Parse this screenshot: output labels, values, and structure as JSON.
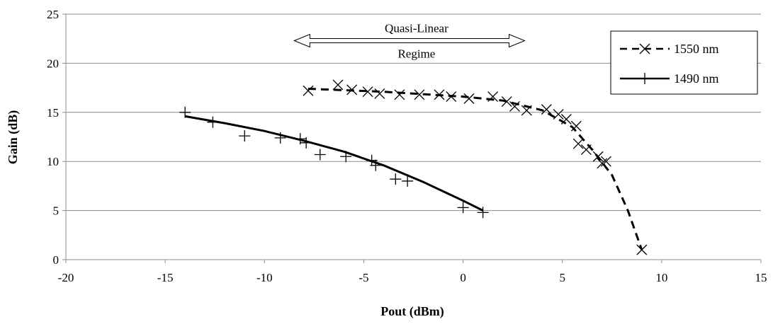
{
  "chart_data": {
    "type": "scatter",
    "title": "",
    "xlabel": "Pout (dBm)",
    "ylabel": "Gain (dB)",
    "xlim": [
      -20,
      15
    ],
    "ylim": [
      0,
      25
    ],
    "x_ticks": [
      -20,
      -15,
      -10,
      -5,
      0,
      5,
      10,
      15
    ],
    "y_ticks": [
      0,
      5,
      10,
      15,
      20,
      25
    ],
    "grid": "horizontal",
    "legend_position": "top-right",
    "series": [
      {
        "name": "1550 nm",
        "marker": "x",
        "line": "dashed",
        "color": "#000000",
        "points": [
          {
            "x": -7.8,
            "y": 17.2
          },
          {
            "x": -6.3,
            "y": 17.8
          },
          {
            "x": -5.6,
            "y": 17.3
          },
          {
            "x": -4.8,
            "y": 17.1
          },
          {
            "x": -4.2,
            "y": 16.9
          },
          {
            "x": -3.2,
            "y": 16.8
          },
          {
            "x": -2.2,
            "y": 16.8
          },
          {
            "x": -1.2,
            "y": 16.8
          },
          {
            "x": -0.6,
            "y": 16.6
          },
          {
            "x": 0.3,
            "y": 16.4
          },
          {
            "x": 1.5,
            "y": 16.6
          },
          {
            "x": 2.2,
            "y": 16.1
          },
          {
            "x": 2.6,
            "y": 15.6
          },
          {
            "x": 3.2,
            "y": 15.2
          },
          {
            "x": 4.2,
            "y": 15.3
          },
          {
            "x": 4.8,
            "y": 14.8
          },
          {
            "x": 5.2,
            "y": 14.3
          },
          {
            "x": 5.7,
            "y": 13.6
          },
          {
            "x": 5.8,
            "y": 11.8
          },
          {
            "x": 6.2,
            "y": 11.2
          },
          {
            "x": 6.8,
            "y": 10.5
          },
          {
            "x": 7.0,
            "y": 9.8
          },
          {
            "x": 7.2,
            "y": 10.0
          },
          {
            "x": 9.0,
            "y": 1.0
          }
        ],
        "fit": [
          {
            "x": -7.8,
            "y": 17.4
          },
          {
            "x": -4.0,
            "y": 17.1
          },
          {
            "x": 0.0,
            "y": 16.6
          },
          {
            "x": 2.0,
            "y": 16.2
          },
          {
            "x": 4.0,
            "y": 15.2
          },
          {
            "x": 5.5,
            "y": 13.5
          },
          {
            "x": 6.5,
            "y": 11.2
          },
          {
            "x": 7.5,
            "y": 8.6
          },
          {
            "x": 8.3,
            "y": 5.0
          },
          {
            "x": 9.0,
            "y": 1.0
          }
        ]
      },
      {
        "name": "1490 nm",
        "marker": "+",
        "line": "solid",
        "color": "#000000",
        "points": [
          {
            "x": -14.0,
            "y": 15.0
          },
          {
            "x": -12.6,
            "y": 14.0
          },
          {
            "x": -11.0,
            "y": 12.6
          },
          {
            "x": -9.2,
            "y": 12.4
          },
          {
            "x": -8.2,
            "y": 12.3
          },
          {
            "x": -7.9,
            "y": 11.9
          },
          {
            "x": -7.2,
            "y": 10.7
          },
          {
            "x": -5.9,
            "y": 10.5
          },
          {
            "x": -4.6,
            "y": 10.1
          },
          {
            "x": -4.4,
            "y": 9.6
          },
          {
            "x": -3.4,
            "y": 8.2
          },
          {
            "x": -2.8,
            "y": 8.0
          },
          {
            "x": 0.0,
            "y": 5.3
          },
          {
            "x": 1.0,
            "y": 4.8
          }
        ],
        "fit": [
          {
            "x": -14.0,
            "y": 14.6
          },
          {
            "x": -12.0,
            "y": 13.9
          },
          {
            "x": -10.0,
            "y": 13.1
          },
          {
            "x": -8.0,
            "y": 12.1
          },
          {
            "x": -6.0,
            "y": 11.0
          },
          {
            "x": -4.0,
            "y": 9.6
          },
          {
            "x": -2.0,
            "y": 7.9
          },
          {
            "x": 0.0,
            "y": 6.0
          },
          {
            "x": 1.0,
            "y": 5.0
          }
        ]
      }
    ],
    "annotations": [
      {
        "type": "double-arrow",
        "line1": "Quasi-Linear",
        "line2": "Regime",
        "x_start": -8.5,
        "x_end": 3.1,
        "y": 22.3
      }
    ]
  }
}
